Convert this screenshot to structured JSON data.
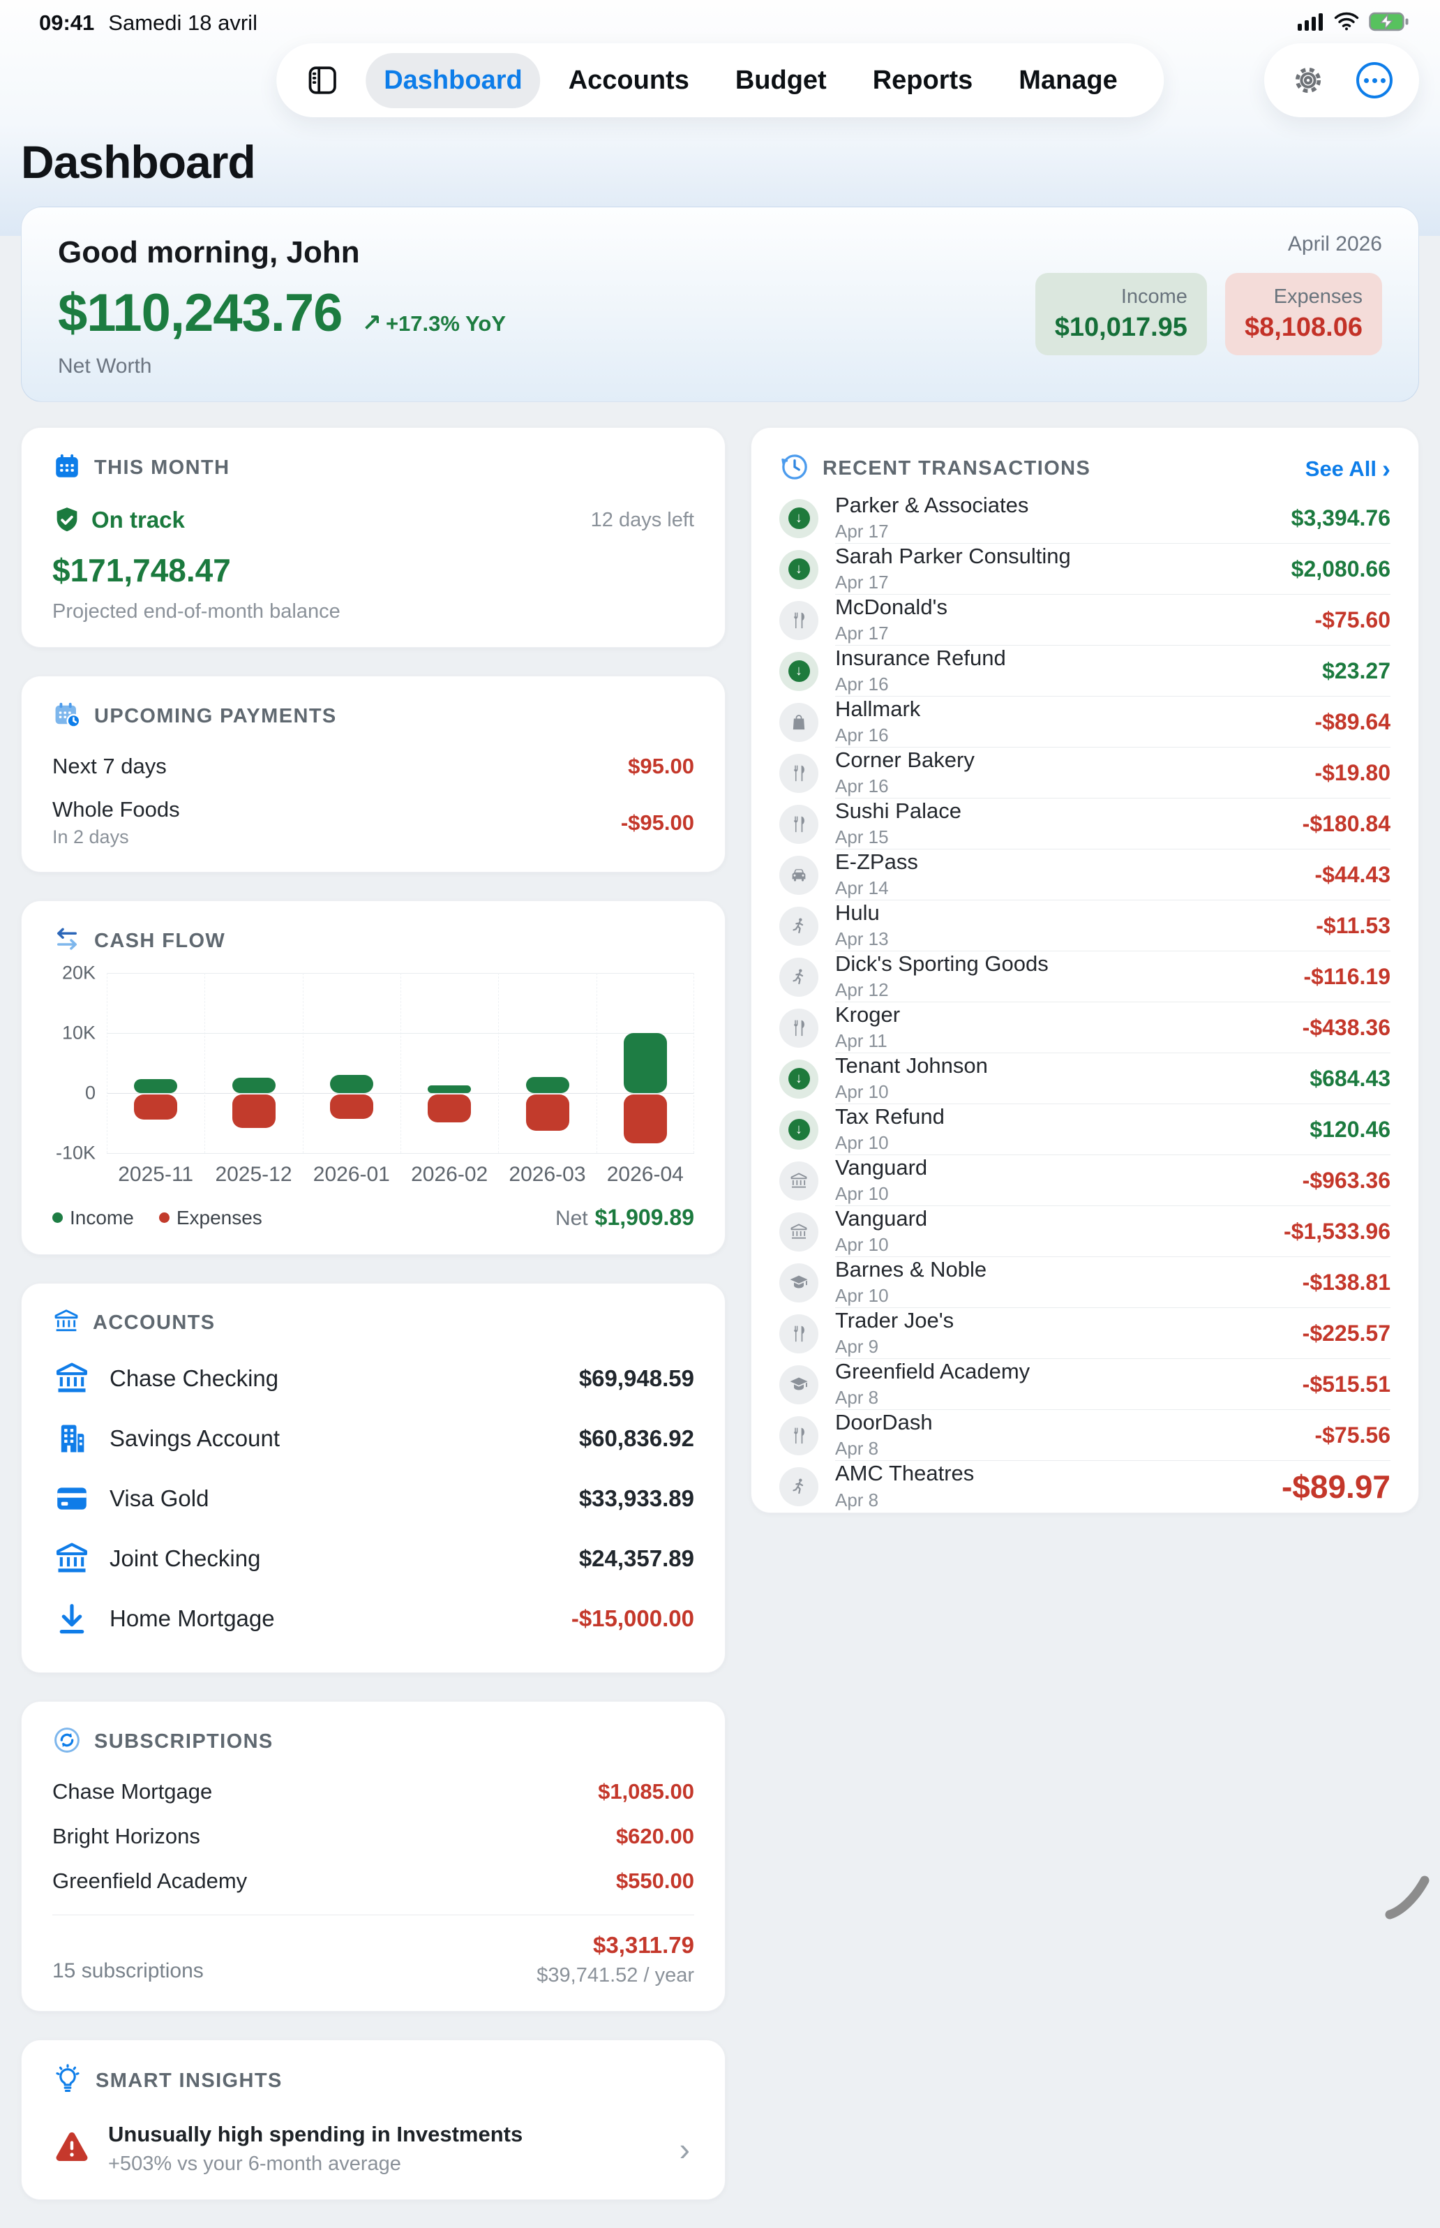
{
  "status_bar": {
    "time": "09:41",
    "date": "Samedi 18 avril"
  },
  "nav": {
    "items": [
      "Dashboard",
      "Accounts",
      "Budget",
      "Reports",
      "Manage"
    ],
    "active": "Dashboard"
  },
  "page_title": "Dashboard",
  "greeting": {
    "title": "Good morning, John",
    "net_worth": "$110,243.76",
    "yoy": "+17.3% YoY",
    "net_worth_label": "Net Worth",
    "period": "April 2026",
    "income_label": "Income",
    "income": "$10,017.95",
    "expenses_label": "Expenses",
    "expenses": "$8,108.06"
  },
  "this_month": {
    "title": "THIS MONTH",
    "status": "On track",
    "days_left": "12 days left",
    "amount": "$171,748.47",
    "caption": "Projected end-of-month balance"
  },
  "upcoming": {
    "title": "UPCOMING PAYMENTS",
    "summary_label": "Next 7 days",
    "summary_amount": "$95.00",
    "items": [
      {
        "name": "Whole Foods",
        "when": "In 2 days",
        "amount": "-$95.00"
      }
    ]
  },
  "cash_flow": {
    "title": "CASH FLOW",
    "net_label": "Net",
    "net_amount": "$1,909.89"
  },
  "chart_data": {
    "type": "bar",
    "title": "CASH FLOW",
    "categories": [
      "2025-11",
      "2025-12",
      "2026-01",
      "2026-02",
      "2026-03",
      "2026-04"
    ],
    "series": [
      {
        "name": "Income",
        "color": "#1e7d44",
        "values": [
          2350,
          2550,
          3000,
          1250,
          2700,
          10018
        ]
      },
      {
        "name": "Expenses",
        "color": "#c23b2c",
        "values": [
          -4200,
          -5600,
          -4050,
          -4600,
          -6000,
          -8108
        ]
      }
    ],
    "ylim": [
      -10000,
      20000
    ],
    "yticks": [
      {
        "label": "20K",
        "value": 20000
      },
      {
        "label": "10K",
        "value": 10000
      },
      {
        "label": "0",
        "value": 0
      },
      {
        "label": "-10K",
        "value": -10000
      }
    ],
    "grid": true,
    "legend_position": "bottom-left",
    "annotation": "Net $1,909.89"
  },
  "accounts": {
    "title": "ACCOUNTS",
    "items": [
      {
        "name": "Chase Checking",
        "balance": "$69,948.59",
        "icon": "bank-icon",
        "negative": false
      },
      {
        "name": "Savings Account",
        "balance": "$60,836.92",
        "icon": "building-icon",
        "negative": false
      },
      {
        "name": "Visa Gold",
        "balance": "$33,933.89",
        "icon": "credit-card-icon",
        "negative": false
      },
      {
        "name": "Joint Checking",
        "balance": "$24,357.89",
        "icon": "bank-icon",
        "negative": false
      },
      {
        "name": "Home Mortgage",
        "balance": "-$15,000.00",
        "icon": "arrow-down-icon",
        "negative": true
      }
    ]
  },
  "subscriptions": {
    "title": "SUBSCRIPTIONS",
    "items": [
      {
        "name": "Chase Mortgage",
        "amount": "$1,085.00"
      },
      {
        "name": "Bright Horizons",
        "amount": "$620.00"
      },
      {
        "name": "Greenfield Academy",
        "amount": "$550.00"
      }
    ],
    "count": "15 subscriptions",
    "monthly_total": "$3,311.79",
    "yearly_total": "$39,741.52 / year"
  },
  "insights": {
    "title": "SMART INSIGHTS",
    "items": [
      {
        "title": "Unusually high spending in Investments",
        "subtitle": "+503% vs your 6-month average"
      }
    ]
  },
  "transactions": {
    "title": "RECENT TRANSACTIONS",
    "see_all": "See All",
    "items": [
      {
        "name": "Parker & Associates",
        "date": "Apr 17",
        "amount": "$3,394.76",
        "type": "income",
        "icon": "arrow-down-circle-icon"
      },
      {
        "name": "Sarah Parker Consulting",
        "date": "Apr 17",
        "amount": "$2,080.66",
        "type": "income",
        "icon": "arrow-down-circle-icon"
      },
      {
        "name": "McDonald's",
        "date": "Apr 17",
        "amount": "-$75.60",
        "type": "expense",
        "icon": "dining-icon"
      },
      {
        "name": "Insurance Refund",
        "date": "Apr 16",
        "amount": "$23.27",
        "type": "income",
        "icon": "arrow-down-circle-icon"
      },
      {
        "name": "Hallmark",
        "date": "Apr 16",
        "amount": "-$89.64",
        "type": "expense",
        "icon": "shopping-bag-icon"
      },
      {
        "name": "Corner Bakery",
        "date": "Apr 16",
        "amount": "-$19.80",
        "type": "expense",
        "icon": "dining-icon"
      },
      {
        "name": "Sushi Palace",
        "date": "Apr 15",
        "amount": "-$180.84",
        "type": "expense",
        "icon": "dining-icon"
      },
      {
        "name": "E-ZPass",
        "date": "Apr 14",
        "amount": "-$44.43",
        "type": "expense",
        "icon": "car-icon"
      },
      {
        "name": "Hulu",
        "date": "Apr 13",
        "amount": "-$11.53",
        "type": "expense",
        "icon": "runner-icon"
      },
      {
        "name": "Dick's Sporting Goods",
        "date": "Apr 12",
        "amount": "-$116.19",
        "type": "expense",
        "icon": "runner-icon"
      },
      {
        "name": "Kroger",
        "date": "Apr 11",
        "amount": "-$438.36",
        "type": "expense",
        "icon": "dining-icon"
      },
      {
        "name": "Tenant Johnson",
        "date": "Apr 10",
        "amount": "$684.43",
        "type": "income",
        "icon": "arrow-down-circle-icon"
      },
      {
        "name": "Tax Refund",
        "date": "Apr 10",
        "amount": "$120.46",
        "type": "income",
        "icon": "arrow-down-circle-icon"
      },
      {
        "name": "Vanguard",
        "date": "Apr 10",
        "amount": "-$963.36",
        "type": "expense",
        "icon": "bank-icon"
      },
      {
        "name": "Vanguard",
        "date": "Apr 10",
        "amount": "-$1,533.96",
        "type": "expense",
        "icon": "bank-icon"
      },
      {
        "name": "Barnes & Noble",
        "date": "Apr 10",
        "amount": "-$138.81",
        "type": "expense",
        "icon": "graduation-cap-icon"
      },
      {
        "name": "Trader Joe's",
        "date": "Apr 9",
        "amount": "-$225.57",
        "type": "expense",
        "icon": "dining-icon"
      },
      {
        "name": "Greenfield Academy",
        "date": "Apr 8",
        "amount": "-$515.51",
        "type": "expense",
        "icon": "graduation-cap-icon"
      },
      {
        "name": "DoorDash",
        "date": "Apr 8",
        "amount": "-$75.56",
        "type": "expense",
        "icon": "dining-icon"
      },
      {
        "name": "AMC Theatres",
        "date": "Apr 8",
        "amount": "-$89.97",
        "type": "expense",
        "icon": "runner-icon",
        "emphasis": true
      }
    ]
  },
  "icons": {
    "yoy_arrow": "↗",
    "income_arrow": "↓",
    "see_all_chevron": "›",
    "row_chevron": "›"
  },
  "colors": {
    "accent_blue": "#0d7de9",
    "positive_green": "#1b7a3e",
    "negative_red": "#c4372a",
    "bar_green": "#1e7d44",
    "bar_red": "#c23b2c",
    "income_badge_bg": "#dbe7de",
    "expense_badge_bg": "#f4dcd9",
    "battery_green": "#57c25e"
  }
}
